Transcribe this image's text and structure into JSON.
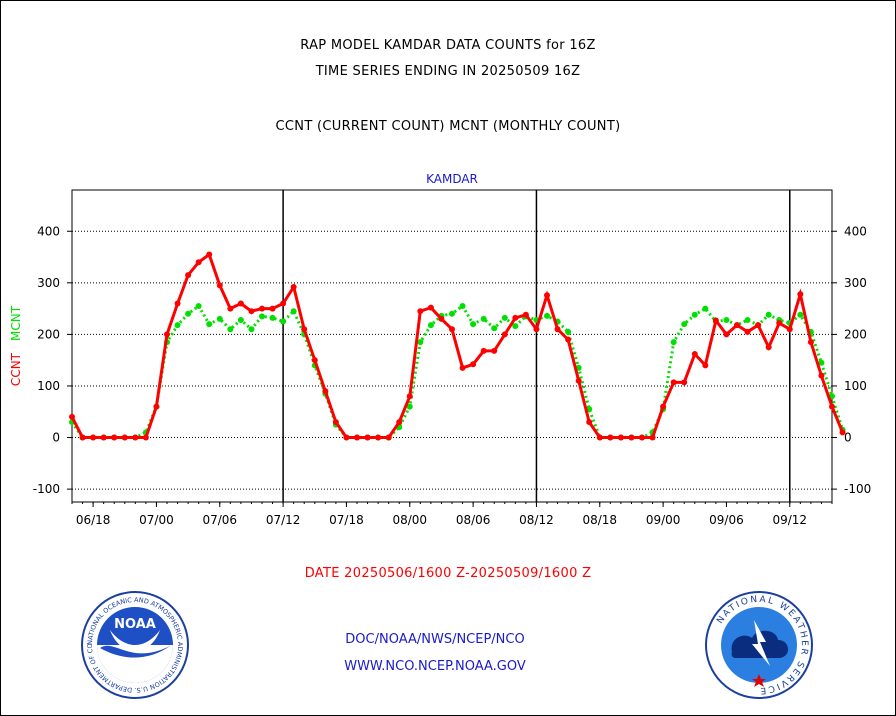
{
  "header": {
    "line1": "RAP MODEL KAMDAR DATA COUNTS for 16Z",
    "line2": "TIME SERIES ENDING IN 20250509 16Z",
    "line3": "CCNT (CURRENT COUNT) MCNT (MONTHLY COUNT)"
  },
  "date_range": "DATE 20250506/1600 Z-20250509/1600 Z",
  "footer": {
    "link1": "DOC/NOAA/NWS/NCEP/NCO",
    "link2": "WWW.NCO.NCEP.NOAA.GOV"
  },
  "logos": {
    "left_name": "NOAA",
    "left_ring": "NATIONAL OCEANIC AND ATMOSPHERIC ADMINISTRATION U.S. DEPARTMENT OF COMMERCE",
    "right_ring": "NATIONAL WEATHER SERVICE"
  },
  "colors": {
    "ccnt": "#ff0000",
    "mcnt": "#00e000",
    "panel_title": "#1a1acc",
    "date_text": "#ff0000",
    "footer_text": "#1a1acc"
  },
  "chart_data": {
    "type": "line",
    "title": "KAMDAR",
    "ylabel_ccnt": "CCNT",
    "ylabel_mcnt": "MCNT",
    "ylim": [
      -125,
      480
    ],
    "yticks": [
      -100,
      0,
      100,
      200,
      300,
      400
    ],
    "xlim": [
      0,
      72
    ],
    "xticks": [
      {
        "x": 2,
        "label": "06/18"
      },
      {
        "x": 8,
        "label": "07/00"
      },
      {
        "x": 14,
        "label": "07/06"
      },
      {
        "x": 20,
        "label": "07/12"
      },
      {
        "x": 26,
        "label": "07/18"
      },
      {
        "x": 32,
        "label": "08/00"
      },
      {
        "x": 38,
        "label": "08/06"
      },
      {
        "x": 44,
        "label": "08/12"
      },
      {
        "x": 50,
        "label": "08/18"
      },
      {
        "x": 56,
        "label": "09/00"
      },
      {
        "x": 62,
        "label": "09/06"
      },
      {
        "x": 68,
        "label": "09/12"
      }
    ],
    "day_boundaries": [
      20,
      44,
      68
    ],
    "grid": true,
    "series": [
      {
        "name": "CCNT",
        "color": "#ff0000",
        "values": [
          40,
          0,
          0,
          0,
          0,
          0,
          0,
          0,
          60,
          200,
          260,
          315,
          340,
          355,
          295,
          250,
          260,
          245,
          250,
          250,
          260,
          292,
          210,
          150,
          90,
          30,
          0,
          0,
          0,
          0,
          0,
          30,
          80,
          245,
          252,
          230,
          210,
          135,
          142,
          168,
          168,
          200,
          232,
          238,
          210,
          276,
          210,
          190,
          110,
          30,
          0,
          0,
          0,
          0,
          0,
          0,
          60,
          107,
          107,
          162,
          140,
          227,
          200,
          218,
          205,
          218,
          175,
          222,
          210,
          278,
          185,
          120,
          60,
          10
        ]
      },
      {
        "name": "MCNT",
        "color": "#00e000",
        "values": [
          30,
          0,
          0,
          0,
          0,
          0,
          0,
          10,
          60,
          185,
          218,
          240,
          255,
          220,
          230,
          210,
          228,
          210,
          235,
          232,
          225,
          245,
          200,
          140,
          85,
          25,
          0,
          0,
          0,
          0,
          0,
          20,
          60,
          185,
          218,
          236,
          240,
          255,
          220,
          230,
          212,
          232,
          216,
          235,
          228,
          236,
          225,
          205,
          135,
          55,
          0,
          0,
          0,
          0,
          0,
          10,
          55,
          185,
          220,
          238,
          250,
          225,
          228,
          218,
          228,
          218,
          238,
          228,
          222,
          238,
          205,
          145,
          80,
          15
        ]
      }
    ]
  }
}
